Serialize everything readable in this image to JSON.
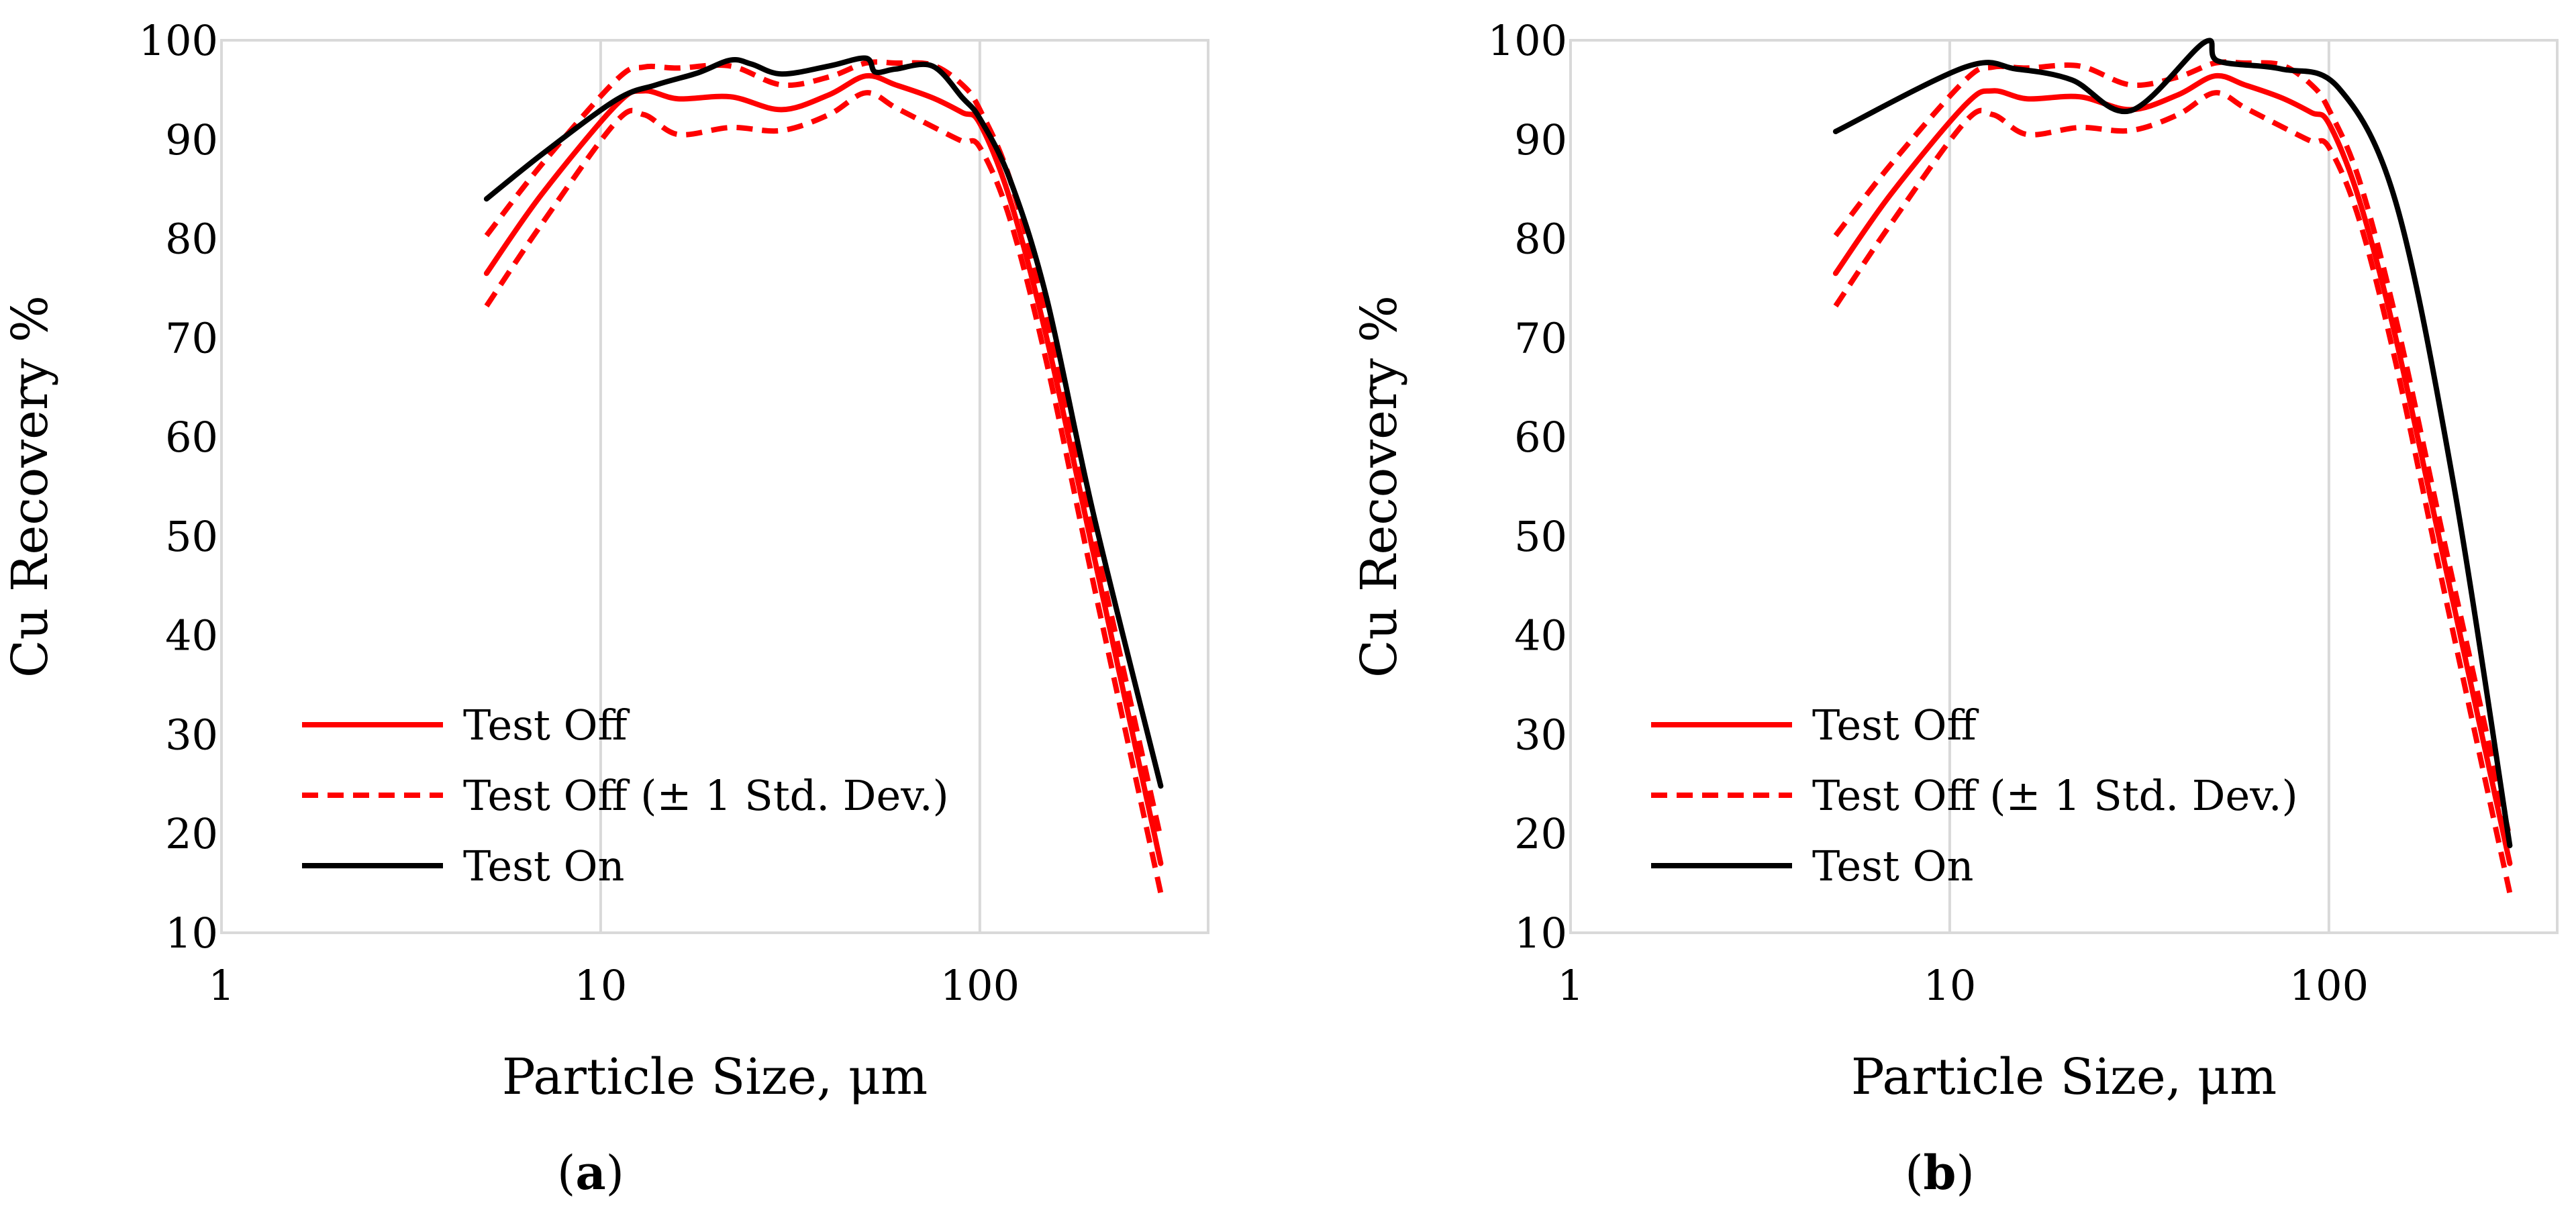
{
  "chart_data": [
    {
      "type": "line",
      "panel_label": "a",
      "xlabel": "Particle Size, μm",
      "ylabel": "Cu Recovery %",
      "xscale": "log",
      "xlim": [
        1,
        400
      ],
      "ylim": [
        10,
        100
      ],
      "xticks": [
        1,
        10,
        100
      ],
      "xtick_labels": [
        "1",
        "10",
        "100"
      ],
      "yticks": [
        10,
        20,
        30,
        40,
        50,
        60,
        70,
        80,
        90,
        100
      ],
      "ytick_labels": [
        "10",
        "20",
        "30",
        "40",
        "50",
        "60",
        "70",
        "80",
        "90",
        "100"
      ],
      "grid": "vertical",
      "legend_position": "bottom-left",
      "legend": [
        "Test Off",
        "Test Off (± 1 Std. Dev.)",
        "Test On"
      ],
      "series": [
        {
          "name": "Test Off",
          "legend": true,
          "color": "#ff0000",
          "style": "solid",
          "x": [
            5,
            7,
            11,
            13,
            16,
            22,
            30,
            40,
            50,
            60,
            75,
            90,
            100,
            120,
            150,
            200,
            300
          ],
          "y": [
            76.5,
            84.5,
            93.5,
            94.9,
            94.1,
            94.3,
            93,
            94.5,
            96.4,
            95.5,
            94.2,
            92.7,
            91.6,
            84,
            70,
            48,
            17
          ]
        },
        {
          "name": "Test Off (+1 Std. Dev.)",
          "legend": true,
          "color": "#ff0000",
          "style": "dashed",
          "x": [
            5,
            7,
            11,
            13,
            16,
            22,
            30,
            40,
            50,
            60,
            75,
            90,
            100,
            120,
            150,
            200,
            300
          ],
          "y": [
            80.3,
            87.5,
            96,
            97.3,
            97.2,
            97.4,
            95.5,
            96.3,
            97.7,
            97.7,
            97.5,
            95.5,
            93,
            86,
            72,
            50,
            19.5
          ]
        },
        {
          "name": "Test Off (-1 Std. Dev.)",
          "legend": false,
          "color": "#ff0000",
          "style": "dashed",
          "x": [
            5,
            7,
            11,
            13,
            16,
            22,
            30,
            40,
            50,
            60,
            75,
            90,
            100,
            120,
            150,
            200,
            300
          ],
          "y": [
            73.2,
            81.5,
            91.8,
            92.5,
            90.5,
            91.2,
            90.9,
            92.5,
            94.7,
            93.2,
            91.3,
            89.8,
            89.2,
            82,
            67.5,
            45,
            14
          ]
        },
        {
          "name": "Test On",
          "legend": true,
          "color": "#000000",
          "style": "solid",
          "x": [
            5,
            7,
            11,
            14,
            18,
            22,
            25,
            30,
            40,
            50,
            53,
            60,
            75,
            90,
            100,
            120,
            150,
            200,
            300
          ],
          "y": [
            84,
            88.5,
            94,
            95.5,
            96.7,
            98,
            97.6,
            96.6,
            97.4,
            98.2,
            96.8,
            97.1,
            97.4,
            94.2,
            92.1,
            86,
            74,
            52,
            24.8
          ]
        }
      ]
    },
    {
      "type": "line",
      "panel_label": "b",
      "xlabel": "Particle Size, μm",
      "ylabel": "Cu Recovery %",
      "xscale": "log",
      "xlim": [
        1,
        400
      ],
      "ylim": [
        10,
        100
      ],
      "xticks": [
        1,
        10,
        100
      ],
      "xtick_labels": [
        "1",
        "10",
        "100"
      ],
      "yticks": [
        10,
        20,
        30,
        40,
        50,
        60,
        70,
        80,
        90,
        100
      ],
      "ytick_labels": [
        "10",
        "20",
        "30",
        "40",
        "50",
        "60",
        "70",
        "80",
        "90",
        "100"
      ],
      "grid": "vertical",
      "legend_position": "bottom-left",
      "legend": [
        "Test Off",
        "Test Off (± 1 Std. Dev.)",
        "Test On"
      ],
      "series": [
        {
          "name": "Test Off",
          "legend": true,
          "color": "#ff0000",
          "style": "solid",
          "x": [
            5,
            7,
            11,
            13,
            16,
            22,
            30,
            40,
            50,
            60,
            75,
            90,
            100,
            120,
            150,
            200,
            300
          ],
          "y": [
            76.5,
            84.5,
            93.5,
            94.9,
            94.1,
            94.3,
            93,
            94.5,
            96.4,
            95.5,
            94.2,
            92.7,
            91.6,
            84,
            70,
            48,
            17
          ]
        },
        {
          "name": "Test Off (+1 Std. Dev.)",
          "legend": true,
          "color": "#ff0000",
          "style": "dashed",
          "x": [
            5,
            7,
            11,
            13,
            16,
            22,
            30,
            40,
            50,
            60,
            75,
            90,
            100,
            120,
            150,
            200,
            300
          ],
          "y": [
            80.3,
            87.5,
            96,
            97.3,
            97.2,
            97.4,
            95.5,
            96.3,
            97.7,
            97.7,
            97.5,
            95.5,
            93,
            86,
            72,
            50,
            19.5
          ]
        },
        {
          "name": "Test Off (-1 Std. Dev.)",
          "legend": false,
          "color": "#ff0000",
          "style": "dashed",
          "x": [
            5,
            7,
            11,
            13,
            16,
            22,
            30,
            40,
            50,
            60,
            75,
            90,
            100,
            120,
            150,
            200,
            300
          ],
          "y": [
            73.2,
            81.5,
            91.8,
            92.5,
            90.5,
            91.2,
            90.9,
            92.5,
            94.7,
            93.2,
            91.3,
            89.8,
            89.2,
            82,
            67.5,
            45,
            14
          ]
        },
        {
          "name": "Test On",
          "legend": true,
          "color": "#000000",
          "style": "solid",
          "x": [
            5,
            11,
            15,
            21,
            30,
            47,
            51,
            75,
            106,
            150,
            212,
            300
          ],
          "y": [
            90.8,
            97.3,
            97.1,
            96,
            92.9,
            99.8,
            97.9,
            97.1,
            95.2,
            83.7,
            55.8,
            18.8
          ]
        }
      ]
    }
  ]
}
